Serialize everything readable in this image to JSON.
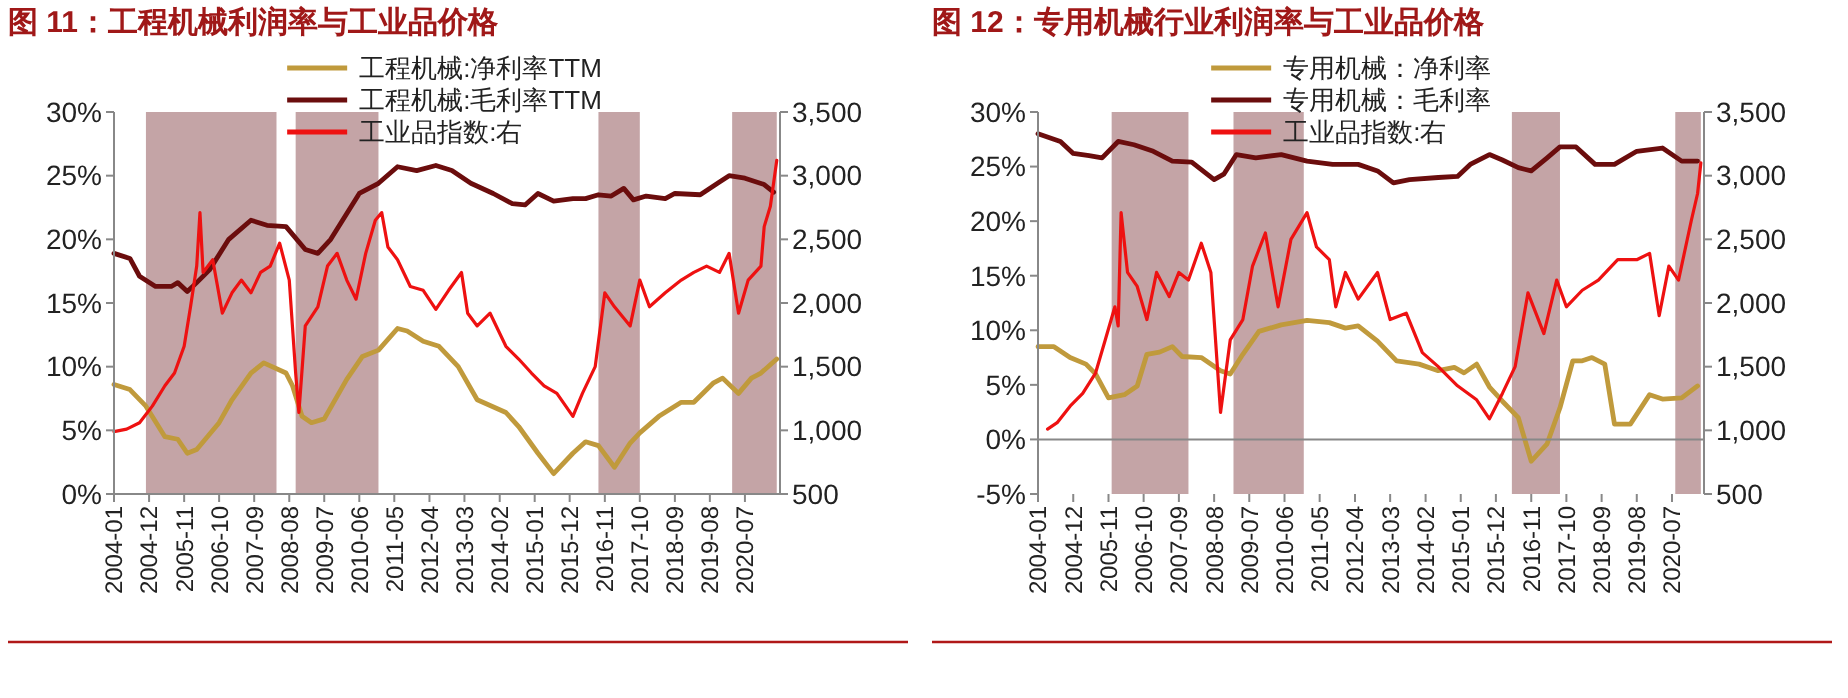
{
  "chart_data": [
    {
      "type": "line",
      "title": "图 11：工程机械利润率与工业品价格",
      "legend": "top",
      "xlim": [
        "2004-01",
        "2021-06"
      ],
      "xticks": [
        "2004-01",
        "2004-12",
        "2005-11",
        "2006-10",
        "2007-09",
        "2008-08",
        "2009-07",
        "2010-06",
        "2011-05",
        "2012-04",
        "2013-03",
        "2014-02",
        "2015-01",
        "2015-12",
        "2016-11",
        "2017-10",
        "2018-09",
        "2019-08",
        "2020-07"
      ],
      "ylim": [
        0,
        30
      ],
      "yticks": [
        {
          "value": 0,
          "label": "0%"
        },
        {
          "value": 5,
          "label": "5%"
        },
        {
          "value": 10,
          "label": "10%"
        },
        {
          "value": 15,
          "label": "15%"
        },
        {
          "value": 20,
          "label": "20%"
        },
        {
          "value": 25,
          "label": "25%"
        },
        {
          "value": 30,
          "label": "30%"
        }
      ],
      "y2lim": [
        500,
        3500
      ],
      "y2ticks": [
        {
          "value": 500,
          "label": "500"
        },
        {
          "value": 1000,
          "label": "1,000"
        },
        {
          "value": 1500,
          "label": "1,500"
        },
        {
          "value": 2000,
          "label": "2,000"
        },
        {
          "value": 2500,
          "label": "2,500"
        },
        {
          "value": 3000,
          "label": "3,000"
        },
        {
          "value": 3500,
          "label": "3,500"
        }
      ],
      "bands": [
        {
          "axis": "x",
          "from": "2004-11",
          "to": "2008-04",
          "color": "#c4a4a6"
        },
        {
          "axis": "x",
          "from": "2008-10",
          "to": "2010-12",
          "color": "#c4a4a6"
        },
        {
          "axis": "x",
          "from": "2016-09",
          "to": "2017-10",
          "color": "#c4a4a6"
        },
        {
          "axis": "x",
          "from": "2020-03",
          "to": "2021-05",
          "color": "#c4a4a6"
        }
      ],
      "series": [
        {
          "name": "工程机械:净利率TTM",
          "color": "#c09a3c",
          "x": [
            "2004-01",
            "2004-06",
            "2004-11",
            "2005-05",
            "2005-09",
            "2005-12",
            "2006-03",
            "2006-10",
            "2007-02",
            "2007-08",
            "2007-12",
            "2008-07",
            "2008-09",
            "2008-12",
            "2009-03",
            "2009-07",
            "2010-02",
            "2010-07",
            "2010-12",
            "2011-06",
            "2011-09",
            "2012-02",
            "2012-07",
            "2013-01",
            "2013-07",
            "2014-04",
            "2014-08",
            "2015-02",
            "2015-07",
            "2016-01",
            "2016-05",
            "2016-09",
            "2017-02",
            "2017-07",
            "2017-10",
            "2018-04",
            "2018-11",
            "2019-03",
            "2019-09",
            "2019-12",
            "2020-05",
            "2020-09",
            "2020-12",
            "2021-05"
          ],
          "values": [
            8.6,
            8.2,
            6.9,
            4.5,
            4.3,
            3.2,
            3.5,
            5.6,
            7.4,
            9.5,
            10.3,
            9.5,
            8.5,
            6.1,
            5.6,
            5.9,
            9.0,
            10.8,
            11.3,
            13.0,
            12.8,
            12.0,
            11.6,
            10.0,
            7.4,
            6.4,
            5.3,
            3.2,
            1.6,
            3.2,
            4.1,
            3.8,
            2.1,
            4.0,
            4.8,
            6.1,
            7.2,
            7.2,
            8.7,
            9.1,
            7.9,
            9.1,
            9.5,
            10.6
          ]
        },
        {
          "name": "工程机械:毛利率TTM",
          "color": "#6b0d0d",
          "x": [
            "2004-01",
            "2004-06",
            "2004-09",
            "2005-02",
            "2005-07",
            "2005-09",
            "2005-12",
            "2006-03",
            "2006-07",
            "2007-01",
            "2007-08",
            "2008-01",
            "2008-07",
            "2009-01",
            "2009-05",
            "2009-09",
            "2010-06",
            "2010-12",
            "2011-06",
            "2011-12",
            "2012-06",
            "2012-11",
            "2013-05",
            "2013-12",
            "2014-06",
            "2014-10",
            "2015-02",
            "2015-07",
            "2016-01",
            "2016-05",
            "2016-09",
            "2017-01",
            "2017-05",
            "2017-08",
            "2017-12",
            "2018-06",
            "2018-09",
            "2019-05",
            "2019-11",
            "2020-02",
            "2020-07",
            "2021-01",
            "2021-04"
          ],
          "values": [
            18.9,
            18.5,
            17.1,
            16.3,
            16.3,
            16.6,
            15.9,
            16.6,
            17.6,
            20.0,
            21.5,
            21.1,
            21.0,
            19.2,
            18.9,
            20.0,
            23.6,
            24.4,
            25.7,
            25.4,
            25.8,
            25.4,
            24.4,
            23.6,
            22.8,
            22.7,
            23.6,
            23.0,
            23.2,
            23.2,
            23.5,
            23.4,
            24.0,
            23.1,
            23.4,
            23.2,
            23.6,
            23.5,
            24.5,
            25.0,
            24.8,
            24.3,
            23.7
          ]
        },
        {
          "name": "工业品指数:右",
          "color": "#ee1111",
          "axis": "y2",
          "x": [
            "2004-01",
            "2004-05",
            "2004-09",
            "2005-01",
            "2005-05",
            "2005-08",
            "2005-11",
            "2006-01",
            "2006-03",
            "2006-04",
            "2006-05",
            "2006-08",
            "2006-11",
            "2007-02",
            "2007-05",
            "2007-08",
            "2007-11",
            "2008-02",
            "2008-05",
            "2008-08",
            "2008-10",
            "2008-11",
            "2009-01",
            "2009-05",
            "2009-08",
            "2009-11",
            "2010-02",
            "2010-05",
            "2010-08",
            "2010-11",
            "2011-01",
            "2011-03",
            "2011-06",
            "2011-10",
            "2012-02",
            "2012-06",
            "2012-10",
            "2013-02",
            "2013-04",
            "2013-07",
            "2013-11",
            "2014-04",
            "2014-08",
            "2014-12",
            "2015-04",
            "2015-08",
            "2016-01",
            "2016-04",
            "2016-08",
            "2016-11",
            "2017-02",
            "2017-07",
            "2017-10",
            "2018-01",
            "2018-06",
            "2018-11",
            "2019-03",
            "2019-07",
            "2019-11",
            "2020-02",
            "2020-05",
            "2020-08",
            "2020-12",
            "2021-01",
            "2021-03",
            "2021-05"
          ],
          "values": [
            990,
            1010,
            1060,
            1190,
            1350,
            1450,
            1660,
            1970,
            2290,
            2710,
            2240,
            2340,
            1920,
            2080,
            2180,
            2080,
            2240,
            2290,
            2470,
            2180,
            1450,
            1140,
            1820,
            1970,
            2290,
            2390,
            2180,
            2030,
            2390,
            2650,
            2710,
            2440,
            2340,
            2130,
            2100,
            1950,
            2100,
            2240,
            1920,
            1820,
            1920,
            1660,
            1560,
            1450,
            1350,
            1290,
            1110,
            1290,
            1500,
            2080,
            1970,
            1820,
            2180,
            1970,
            2080,
            2180,
            2240,
            2290,
            2240,
            2390,
            1920,
            2180,
            2290,
            2600,
            2760,
            3120
          ]
        }
      ]
    },
    {
      "type": "line",
      "title": "图 12：专用机械行业利润率与工业品价格",
      "legend": "top",
      "xlim": [
        "2004-01",
        "2021-05"
      ],
      "xticks": [
        "2004-01",
        "2004-12",
        "2005-11",
        "2006-10",
        "2007-09",
        "2008-08",
        "2009-07",
        "2010-06",
        "2011-05",
        "2012-04",
        "2013-03",
        "2014-02",
        "2015-01",
        "2015-12",
        "2016-11",
        "2017-10",
        "2018-09",
        "2019-08",
        "2020-07"
      ],
      "ylim": [
        -5,
        30
      ],
      "yticks": [
        {
          "value": -5,
          "label": "-5%"
        },
        {
          "value": 0,
          "label": "0%"
        },
        {
          "value": 5,
          "label": "5%"
        },
        {
          "value": 10,
          "label": "10%"
        },
        {
          "value": 15,
          "label": "15%"
        },
        {
          "value": 20,
          "label": "20%"
        },
        {
          "value": 25,
          "label": "25%"
        },
        {
          "value": 30,
          "label": "30%"
        }
      ],
      "y2lim": [
        500,
        3500
      ],
      "y2ticks": [
        {
          "value": 500,
          "label": "500"
        },
        {
          "value": 1000,
          "label": "1,000"
        },
        {
          "value": 1500,
          "label": "1,500"
        },
        {
          "value": 2000,
          "label": "2,000"
        },
        {
          "value": 2500,
          "label": "2,500"
        },
        {
          "value": 3000,
          "label": "3,000"
        },
        {
          "value": 3500,
          "label": "3,500"
        }
      ],
      "bands": [
        {
          "axis": "x",
          "from": "2005-12",
          "to": "2007-12",
          "color": "#c4a4a6"
        },
        {
          "axis": "x",
          "from": "2009-02",
          "to": "2010-12",
          "color": "#c4a4a6"
        },
        {
          "axis": "x",
          "from": "2016-05",
          "to": "2017-08",
          "color": "#c4a4a6"
        },
        {
          "axis": "x",
          "from": "2020-08",
          "to": "2021-04",
          "color": "#c4a4a6"
        }
      ],
      "series": [
        {
          "name": "专用机械：净利率",
          "color": "#c09a3c",
          "x": [
            "2004-01",
            "2004-06",
            "2004-11",
            "2005-04",
            "2005-07",
            "2005-11",
            "2006-04",
            "2006-08",
            "2006-11",
            "2007-03",
            "2007-07",
            "2007-10",
            "2008-04",
            "2008-10",
            "2009-01",
            "2009-05",
            "2009-10",
            "2010-05",
            "2011-01",
            "2011-08",
            "2012-01",
            "2012-05",
            "2012-11",
            "2013-05",
            "2013-12",
            "2014-06",
            "2014-11",
            "2015-02",
            "2015-06",
            "2015-10",
            "2016-02",
            "2016-07",
            "2016-11",
            "2017-04",
            "2017-08",
            "2017-12",
            "2018-03",
            "2018-06",
            "2018-10",
            "2019-01",
            "2019-06",
            "2019-12",
            "2020-04",
            "2020-10",
            "2021-03"
          ],
          "values": [
            8.5,
            8.5,
            7.5,
            6.9,
            6.0,
            3.8,
            4.1,
            4.9,
            7.8,
            8.0,
            8.5,
            7.6,
            7.5,
            6.3,
            6.0,
            7.8,
            9.9,
            10.5,
            10.9,
            10.7,
            10.2,
            10.4,
            9.0,
            7.2,
            6.9,
            6.3,
            6.6,
            6.1,
            6.9,
            4.8,
            3.5,
            2.0,
            -2.0,
            -0.4,
            2.9,
            7.2,
            7.2,
            7.5,
            6.9,
            1.4,
            1.4,
            4.1,
            3.7,
            3.8,
            4.9
          ]
        },
        {
          "name": "专用机械：毛利率",
          "color": "#6b0d0d",
          "x": [
            "2004-01",
            "2004-08",
            "2004-12",
            "2005-05",
            "2005-09",
            "2006-02",
            "2006-07",
            "2007-01",
            "2007-07",
            "2008-01",
            "2008-08",
            "2008-11",
            "2009-03",
            "2009-09",
            "2010-05",
            "2011-01",
            "2011-09",
            "2012-05",
            "2012-11",
            "2013-04",
            "2013-09",
            "2014-06",
            "2014-12",
            "2015-04",
            "2015-10",
            "2016-02",
            "2016-07",
            "2016-11",
            "2017-04",
            "2017-08",
            "2018-01",
            "2018-07",
            "2019-01",
            "2019-08",
            "2020-04",
            "2020-10",
            "2021-03"
          ],
          "values": [
            28.0,
            27.3,
            26.2,
            26.0,
            25.8,
            27.3,
            27.0,
            26.4,
            25.5,
            25.4,
            23.8,
            24.3,
            26.1,
            25.8,
            26.1,
            25.5,
            25.2,
            25.2,
            24.6,
            23.5,
            23.8,
            24.0,
            24.1,
            25.2,
            26.1,
            25.6,
            24.9,
            24.6,
            25.8,
            26.8,
            26.8,
            25.2,
            25.2,
            26.4,
            26.7,
            25.5,
            25.5
          ]
        },
        {
          "name": "工业品指数:右",
          "color": "#ee1111",
          "axis": "y2",
          "x": [
            "2004-04",
            "2004-07",
            "2004-11",
            "2005-03",
            "2005-07",
            "2005-10",
            "2006-01",
            "2006-02",
            "2006-03",
            "2006-05",
            "2006-08",
            "2006-11",
            "2007-02",
            "2007-06",
            "2007-09",
            "2007-12",
            "2008-04",
            "2008-07",
            "2008-10",
            "2009-01",
            "2009-05",
            "2009-08",
            "2009-12",
            "2010-04",
            "2010-08",
            "2011-01",
            "2011-04",
            "2011-08",
            "2011-10",
            "2012-01",
            "2012-05",
            "2012-11",
            "2013-03",
            "2013-08",
            "2014-01",
            "2014-06",
            "2014-12",
            "2015-06",
            "2015-10",
            "2016-02",
            "2016-06",
            "2016-10",
            "2017-03",
            "2017-07",
            "2017-10",
            "2018-03",
            "2018-08",
            "2019-02",
            "2019-08",
            "2019-12",
            "2020-03",
            "2020-06",
            "2020-09",
            "2021-01",
            "2021-03",
            "2021-04"
          ],
          "values": [
            1010,
            1060,
            1190,
            1290,
            1450,
            1710,
            1970,
            1820,
            2710,
            2240,
            2130,
            1870,
            2240,
            2050,
            2240,
            2180,
            2470,
            2240,
            1140,
            1710,
            1870,
            2290,
            2550,
            1970,
            2500,
            2710,
            2440,
            2340,
            1970,
            2240,
            2030,
            2240,
            1870,
            1920,
            1610,
            1500,
            1350,
            1240,
            1090,
            1290,
            1500,
            2080,
            1760,
            2180,
            1970,
            2100,
            2180,
            2340,
            2340,
            2390,
            1900,
            2290,
            2180,
            2650,
            2860,
            3100
          ]
        }
      ]
    }
  ]
}
